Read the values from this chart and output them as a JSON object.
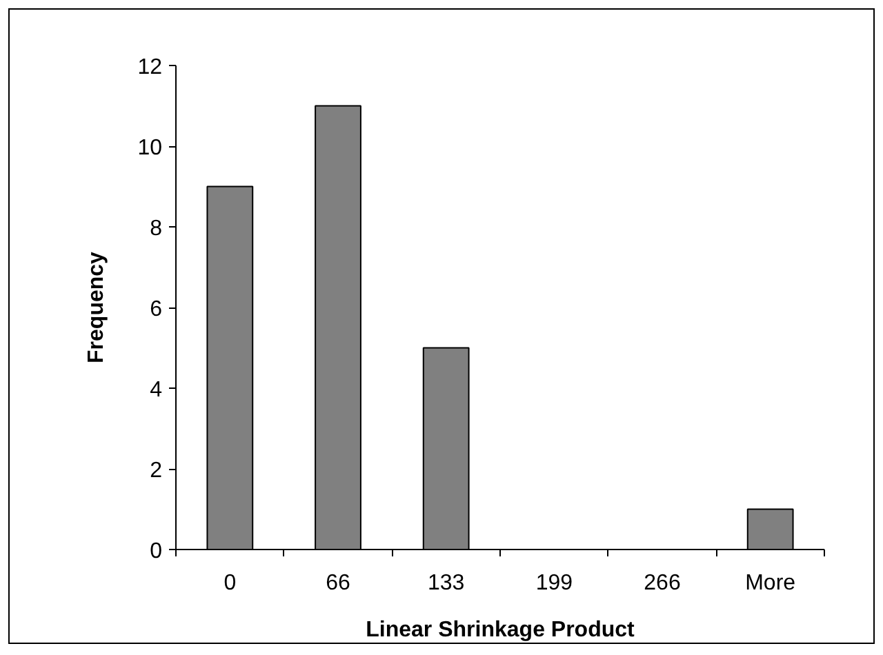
{
  "chart_data": {
    "type": "bar",
    "xlabel": "Linear Shrinkage Product",
    "ylabel": "Frequency",
    "categories": [
      "0",
      "66",
      "133",
      "199",
      "266",
      "More"
    ],
    "values": [
      9,
      11,
      5,
      0,
      0,
      1
    ],
    "color": "#808080",
    "ylim": [
      0,
      12
    ],
    "yticks": [
      0,
      2,
      4,
      6,
      8,
      10,
      12
    ],
    "grid": false
  }
}
